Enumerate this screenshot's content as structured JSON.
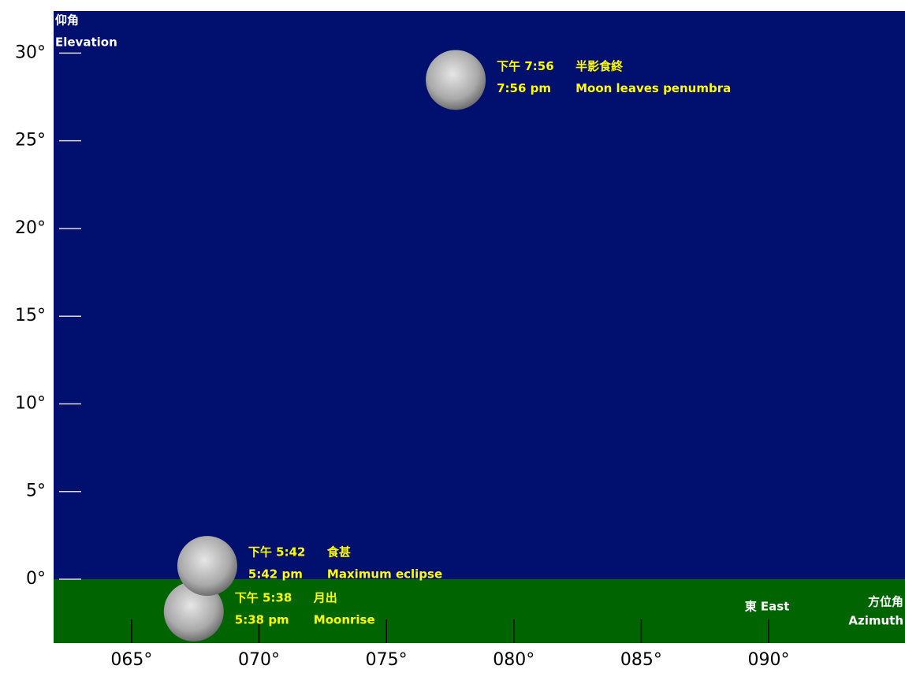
{
  "chart_data": {
    "type": "scatter",
    "y_label_zh": "仰角",
    "y_label_en": "Elevation",
    "x_label_zh": "方位角",
    "x_label_en": "Azimuth",
    "east_label": "東 East",
    "x": [
      67.44,
      67.97,
      77.72
    ],
    "values": [
      -1.84,
      0.76,
      28.47
    ],
    "time_zh": [
      "下午 5:38",
      "下午 5:42",
      "下午 7:56"
    ],
    "event_zh": [
      "月出",
      "食甚",
      "半影食終"
    ],
    "time_en": [
      "5:38 pm",
      "5:42 pm",
      "7:56 pm"
    ],
    "event_en": [
      "Moonrise",
      "Maximum eclipse",
      "Moon leaves penumbra"
    ],
    "xlim": [
      61.94,
      95.35
    ],
    "ylim": [
      -3.64,
      32.4
    ],
    "xticks": [
      {
        "value": 65,
        "label": "065°"
      },
      {
        "value": 70,
        "label": "070°"
      },
      {
        "value": 75,
        "label": "075°"
      },
      {
        "value": 80,
        "label": "080°"
      },
      {
        "value": 85,
        "label": "085°"
      },
      {
        "value": 90,
        "label": "090°"
      }
    ],
    "yticks": [
      {
        "value": 0,
        "label": "0°"
      },
      {
        "value": 5,
        "label": "5°"
      },
      {
        "value": 10,
        "label": "10°"
      },
      {
        "value": 15,
        "label": "15°"
      },
      {
        "value": 20,
        "label": "20°"
      },
      {
        "value": 25,
        "label": "25°"
      },
      {
        "value": 30,
        "label": "30°"
      }
    ],
    "sky_color": "#01106e",
    "ground_color": "#006400",
    "label_color": "#ffff00"
  }
}
